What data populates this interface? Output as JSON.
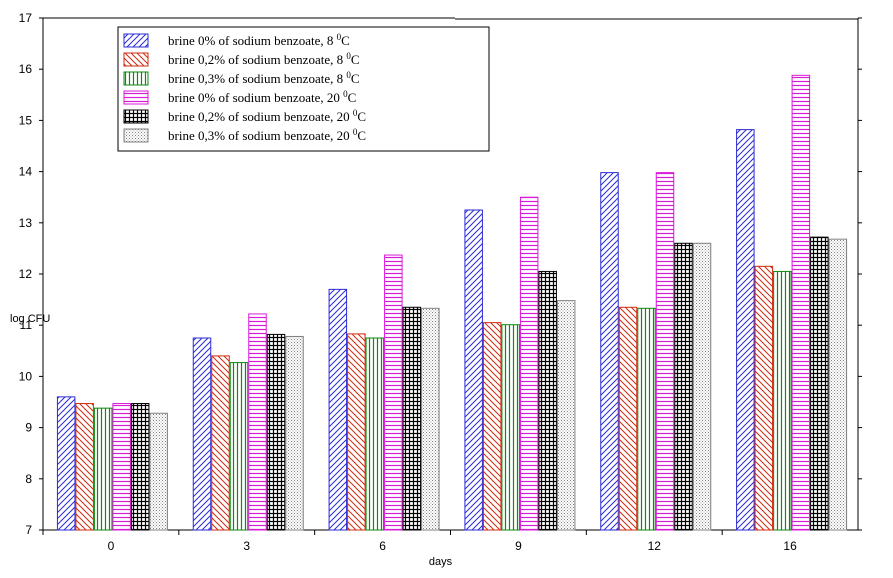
{
  "chart_data": {
    "type": "bar",
    "categories": [
      "0",
      "3",
      "6",
      "9",
      "12",
      "16"
    ],
    "xlabel": "days",
    "ylabel": "log CFU",
    "ylim": [
      7,
      17
    ],
    "yticks": [
      7,
      8,
      9,
      10,
      11,
      12,
      13,
      14,
      15,
      16,
      17
    ],
    "grid": false,
    "legend_position": "top-left",
    "series": [
      {
        "name": "brine 0% of sodium benzoate, 8 ⁰C",
        "label": "brine 0% of sodium benzoate, 8",
        "sup": "0",
        "unit": "C",
        "color": "#2b2bd6",
        "pattern": "diag-right",
        "values": [
          9.6,
          10.75,
          11.7,
          13.25,
          13.98,
          14.82
        ]
      },
      {
        "name": "brine 0,2% of sodium benzoate, 8 ⁰C",
        "label": "brine 0,2% of sodium benzoate, 8",
        "sup": "0",
        "unit": "C",
        "color": "#d12a10",
        "pattern": "diag-left",
        "values": [
          9.47,
          10.4,
          10.83,
          11.05,
          11.35,
          12.15
        ]
      },
      {
        "name": "brine 0,3% of sodium benzoate, 8 ⁰C",
        "label": "brine 0,3% of sodium benzoate, 8",
        "sup": "0",
        "unit": "C",
        "color": "#0f8a0f",
        "pattern": "vertical",
        "values": [
          9.38,
          10.27,
          10.75,
          11.01,
          11.33,
          12.05
        ]
      },
      {
        "name": "brine 0% of sodium benzoate, 20 ⁰C",
        "label": "brine 0% of sodium benzoate, 20",
        "sup": "0",
        "unit": "C",
        "color": "#d91ad9",
        "pattern": "horizontal",
        "values": [
          9.47,
          11.22,
          12.37,
          13.5,
          13.98,
          15.88
        ]
      },
      {
        "name": "brine 0,2% of sodium benzoate, 20 ⁰C",
        "label": "brine 0,2% of sodium benzoate, 20",
        "sup": "0",
        "unit": "C",
        "color": "#000000",
        "pattern": "grid",
        "values": [
          9.47,
          10.82,
          11.35,
          12.05,
          12.6,
          12.72
        ]
      },
      {
        "name": "brine 0,3% of sodium benzoate, 20 ⁰C",
        "label": "brine 0,3% of sodium benzoate, 20",
        "sup": "0",
        "unit": "C",
        "color": "#808080",
        "pattern": "dots",
        "values": [
          9.28,
          10.78,
          11.33,
          11.48,
          12.6,
          12.68
        ]
      }
    ]
  }
}
